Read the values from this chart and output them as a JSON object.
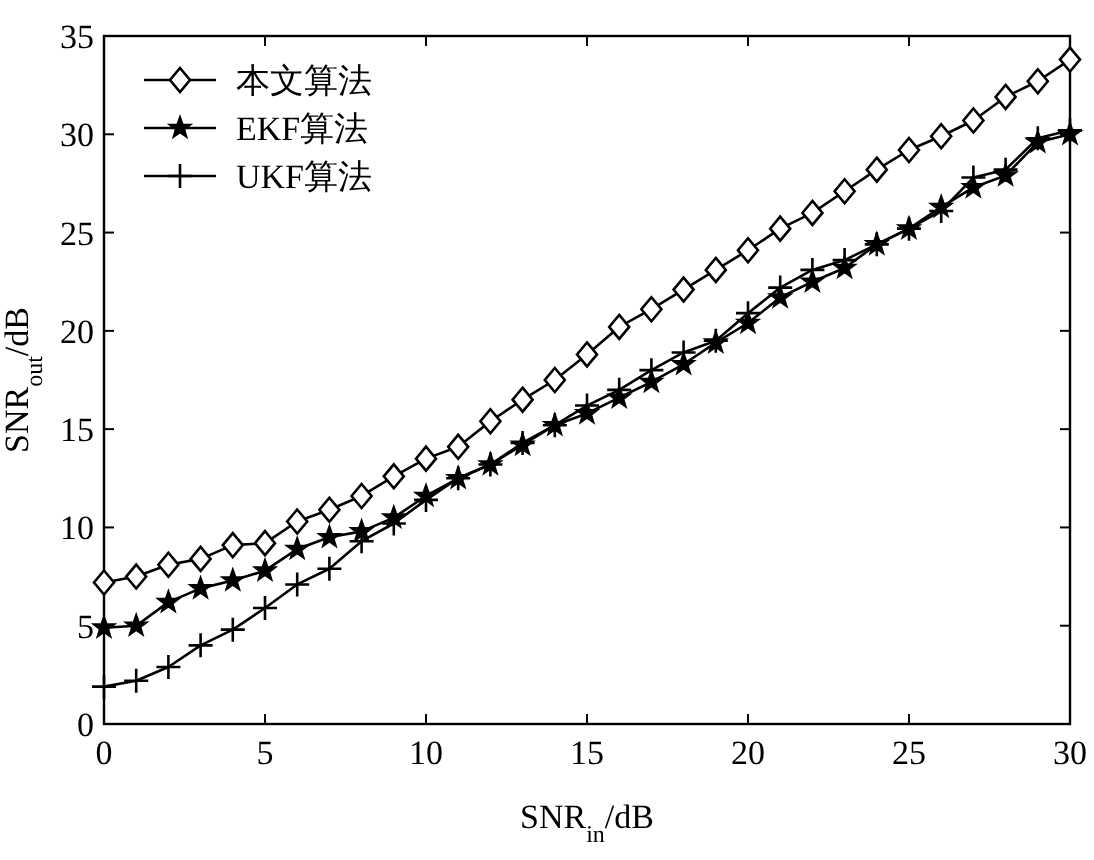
{
  "chart_data": {
    "type": "line",
    "xlabel": "SNR$_{in}$/dB",
    "ylabel": "SNR$_{out}$/dB",
    "x": [
      0,
      1,
      2,
      3,
      4,
      5,
      6,
      7,
      8,
      9,
      10,
      11,
      12,
      13,
      14,
      15,
      16,
      17,
      18,
      19,
      20,
      21,
      22,
      23,
      24,
      25,
      26,
      27,
      28,
      29,
      30
    ],
    "series": [
      {
        "name": "本文算法",
        "color": "#000000",
        "marker": "diamond",
        "values": [
          7.2,
          7.5,
          8.1,
          8.4,
          9.1,
          9.2,
          10.3,
          10.9,
          11.6,
          12.6,
          13.5,
          14.1,
          15.4,
          16.5,
          17.5,
          18.8,
          20.2,
          21.1,
          22.1,
          23.1,
          24.1,
          25.2,
          26.0,
          27.1,
          28.2,
          29.2,
          29.9,
          30.7,
          31.9,
          32.7,
          33.8
        ]
      },
      {
        "name": "EKF算法",
        "color": "#000000",
        "marker": "star",
        "values": [
          4.9,
          5.0,
          6.2,
          6.9,
          7.3,
          7.8,
          8.9,
          9.5,
          9.8,
          10.5,
          11.6,
          12.5,
          13.2,
          14.2,
          15.2,
          15.8,
          16.6,
          17.4,
          18.3,
          19.4,
          20.4,
          21.7,
          22.5,
          23.2,
          24.4,
          25.2,
          26.3,
          27.3,
          27.9,
          29.6,
          30.0
        ]
      },
      {
        "name": "UKF算法",
        "color": "#000000",
        "marker": "cross",
        "values": [
          1.9,
          2.2,
          2.9,
          4.0,
          4.8,
          5.9,
          7.1,
          7.9,
          9.3,
          10.2,
          11.4,
          12.5,
          13.2,
          14.3,
          15.2,
          16.2,
          17.0,
          18.0,
          18.9,
          19.5,
          20.9,
          22.2,
          23.1,
          23.6,
          24.4,
          25.2,
          26.1,
          27.8,
          28.2,
          29.8,
          30.2
        ]
      }
    ],
    "xlim": [
      0,
      30
    ],
    "ylim": [
      0,
      35
    ],
    "xticks": [
      0,
      5,
      10,
      15,
      20,
      25,
      30
    ],
    "yticks": [
      0,
      5,
      10,
      15,
      20,
      25,
      30,
      35
    ],
    "grid": false,
    "legend": "top left",
    "line_style": "solid"
  }
}
